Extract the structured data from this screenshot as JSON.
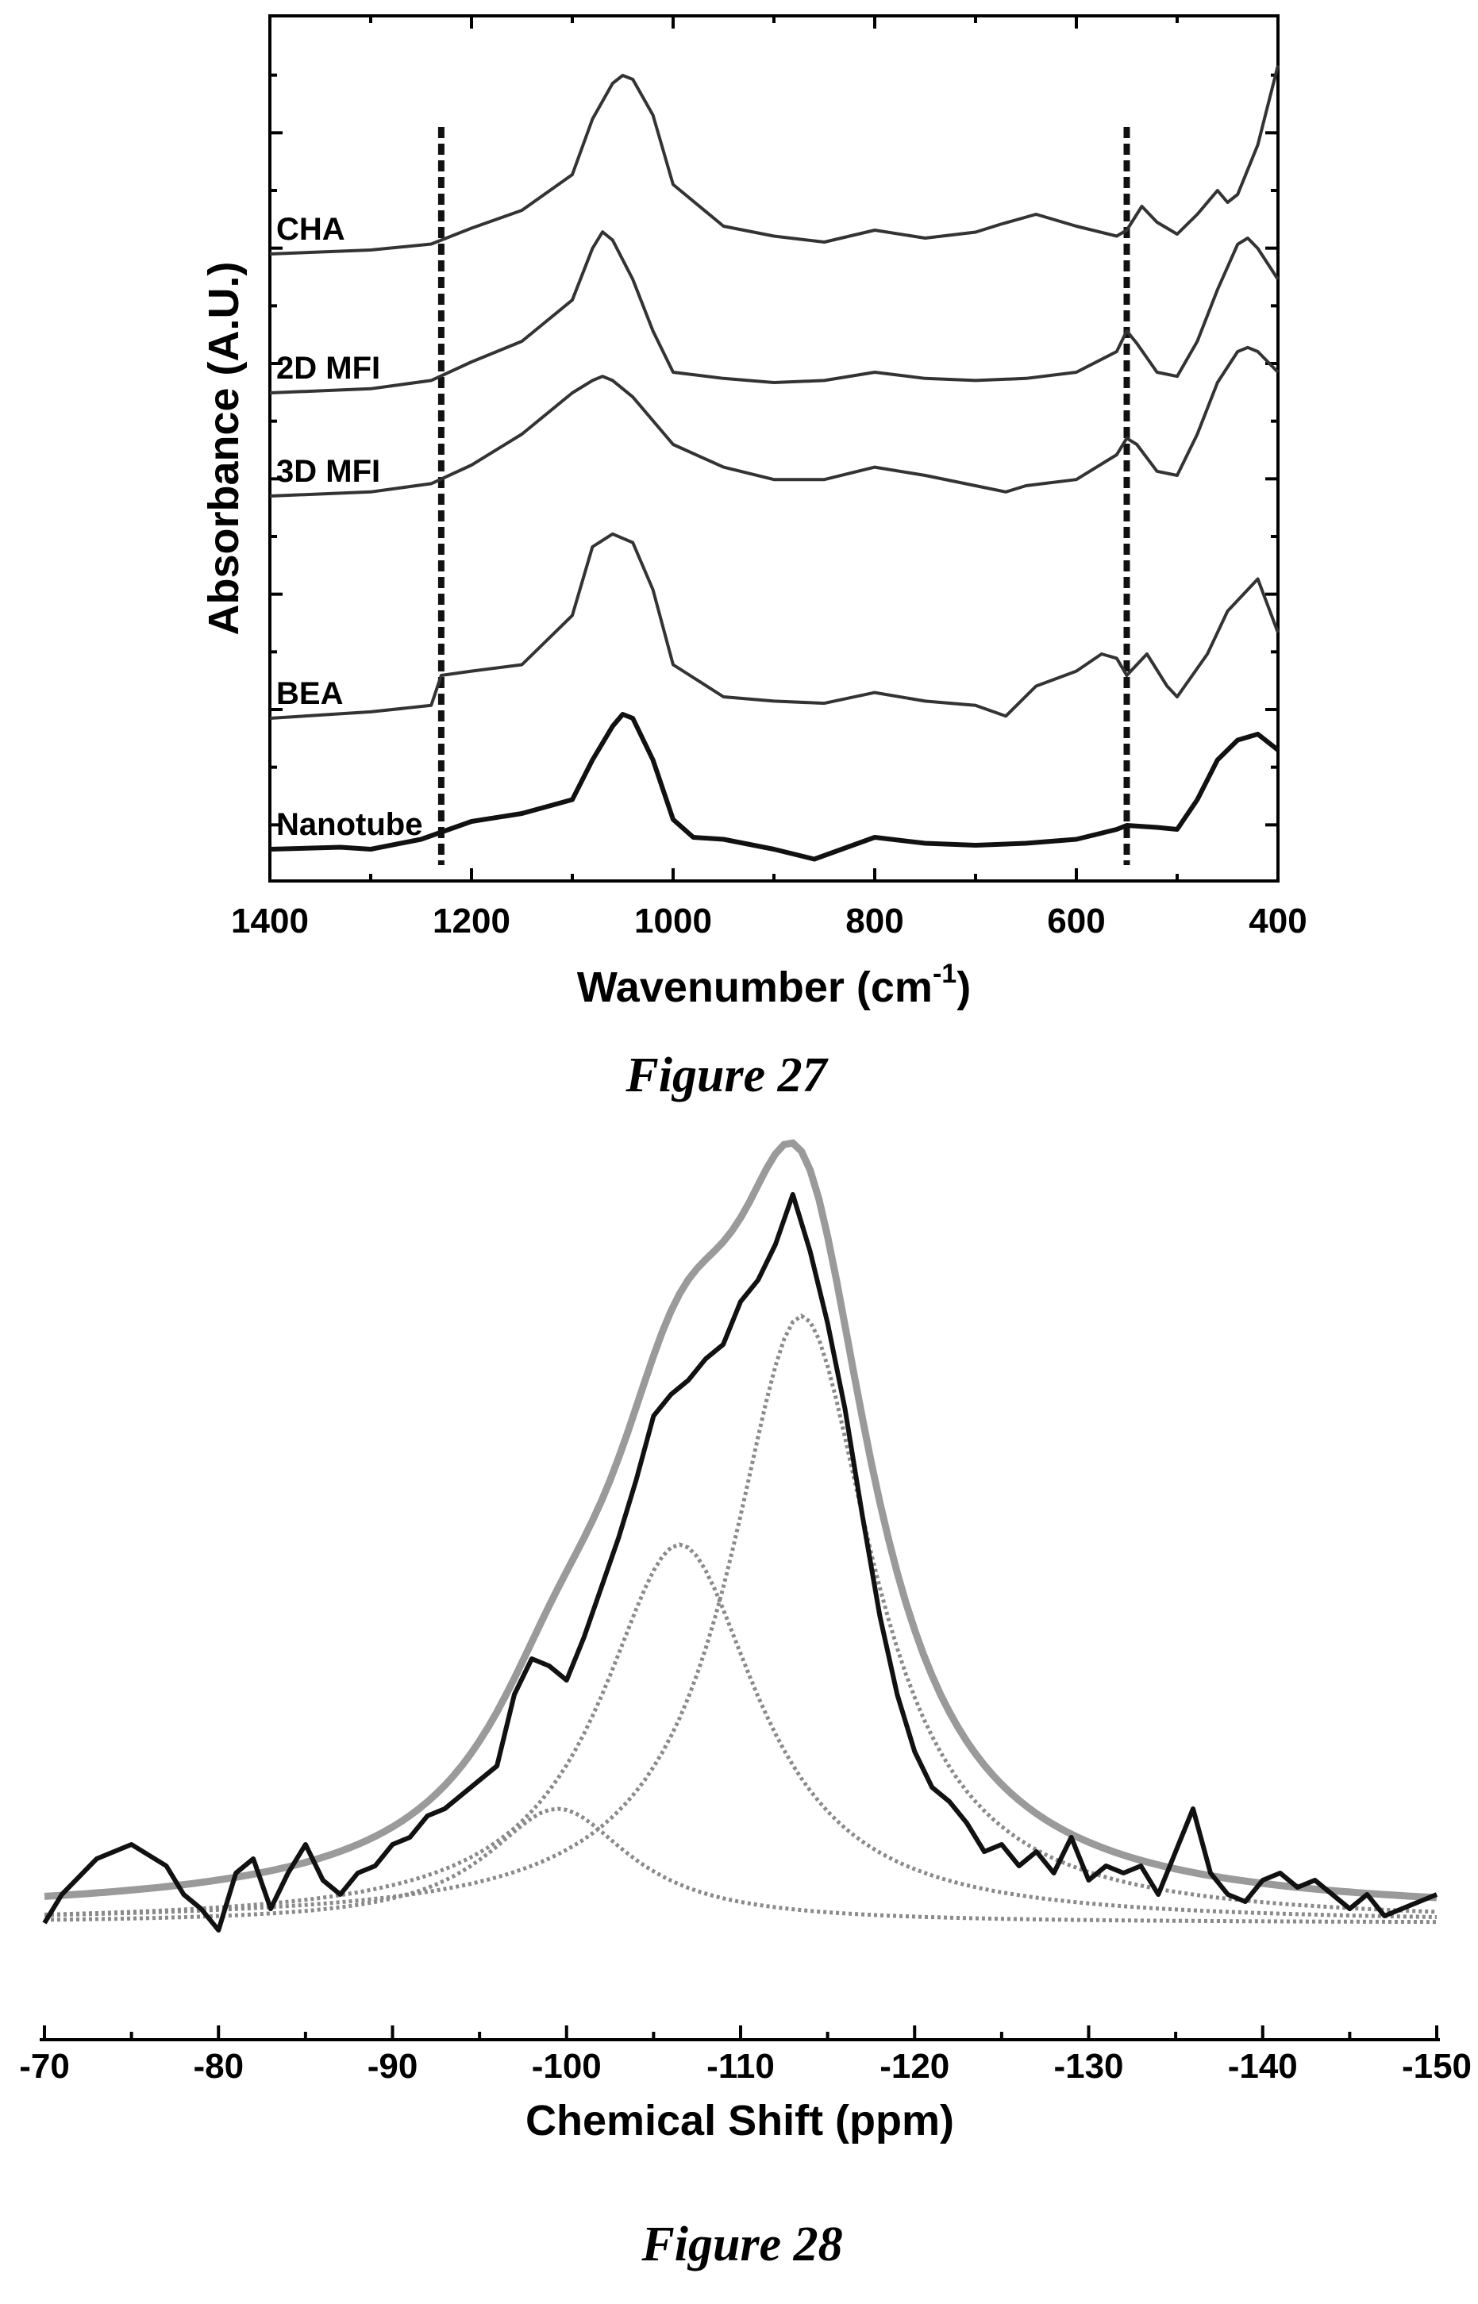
{
  "chart_data": [
    {
      "type": "line",
      "caption": "Figure 27",
      "xlabel": "Wavenumber (cm",
      "xlabel_sup": "-1",
      "xlabel_close": ")",
      "ylabel": "Absorbance (A.U.)",
      "xlim": [
        1400,
        400
      ],
      "x_reversed": true,
      "xticks": [
        "1400",
        "1200",
        "1000",
        "800",
        "600",
        "400"
      ],
      "reference_lines_x": [
        1230,
        550
      ],
      "grid": false,
      "series": [
        {
          "name": "CHA",
          "x": [
            1400,
            1300,
            1240,
            1200,
            1150,
            1100,
            1080,
            1060,
            1050,
            1040,
            1020,
            1000,
            950,
            900,
            850,
            800,
            750,
            700,
            675,
            640,
            600,
            560,
            550,
            535,
            520,
            500,
            480,
            460,
            450,
            440,
            420,
            400
          ],
          "y": [
            0.0,
            0.02,
            0.05,
            0.13,
            0.22,
            0.4,
            0.68,
            0.86,
            0.9,
            0.88,
            0.7,
            0.35,
            0.14,
            0.09,
            0.06,
            0.12,
            0.08,
            0.11,
            0.15,
            0.2,
            0.14,
            0.09,
            0.12,
            0.24,
            0.16,
            0.1,
            0.2,
            0.32,
            0.26,
            0.3,
            0.55,
            0.95
          ]
        },
        {
          "name": "2D MFI",
          "x": [
            1400,
            1300,
            1240,
            1200,
            1150,
            1100,
            1080,
            1070,
            1060,
            1040,
            1020,
            1000,
            950,
            900,
            850,
            800,
            750,
            700,
            650,
            600,
            560,
            550,
            540,
            520,
            500,
            480,
            460,
            440,
            430,
            420,
            400
          ],
          "y": [
            0.0,
            0.02,
            0.06,
            0.15,
            0.25,
            0.45,
            0.7,
            0.78,
            0.74,
            0.55,
            0.3,
            0.1,
            0.07,
            0.05,
            0.06,
            0.1,
            0.07,
            0.06,
            0.07,
            0.1,
            0.2,
            0.3,
            0.24,
            0.1,
            0.08,
            0.25,
            0.5,
            0.72,
            0.75,
            0.7,
            0.55
          ]
        },
        {
          "name": "3D MFI",
          "x": [
            1400,
            1300,
            1240,
            1200,
            1150,
            1100,
            1080,
            1070,
            1060,
            1040,
            1000,
            950,
            900,
            850,
            800,
            750,
            700,
            670,
            650,
            600,
            560,
            550,
            540,
            520,
            500,
            480,
            460,
            440,
            430,
            420,
            400
          ],
          "y": [
            0.0,
            0.02,
            0.06,
            0.15,
            0.3,
            0.5,
            0.56,
            0.58,
            0.56,
            0.48,
            0.25,
            0.14,
            0.08,
            0.08,
            0.14,
            0.1,
            0.05,
            0.02,
            0.05,
            0.08,
            0.2,
            0.28,
            0.25,
            0.12,
            0.1,
            0.3,
            0.55,
            0.7,
            0.72,
            0.7,
            0.6
          ]
        },
        {
          "name": "BEA",
          "x": [
            1400,
            1300,
            1240,
            1230,
            1200,
            1150,
            1100,
            1080,
            1060,
            1040,
            1020,
            1000,
            950,
            900,
            850,
            800,
            750,
            700,
            670,
            640,
            600,
            575,
            560,
            550,
            530,
            510,
            500,
            470,
            450,
            430,
            420,
            400
          ],
          "y": [
            0.0,
            0.03,
            0.06,
            0.2,
            0.22,
            0.25,
            0.48,
            0.8,
            0.86,
            0.82,
            0.6,
            0.25,
            0.1,
            0.08,
            0.07,
            0.12,
            0.08,
            0.06,
            0.01,
            0.15,
            0.22,
            0.3,
            0.28,
            0.2,
            0.3,
            0.15,
            0.1,
            0.3,
            0.5,
            0.6,
            0.65,
            0.4
          ]
        },
        {
          "name": "Nanotube",
          "x": [
            1400,
            1330,
            1300,
            1250,
            1200,
            1150,
            1100,
            1080,
            1060,
            1050,
            1040,
            1020,
            1000,
            980,
            950,
            900,
            860,
            800,
            750,
            700,
            650,
            600,
            560,
            550,
            520,
            500,
            480,
            460,
            440,
            420,
            400
          ],
          "y": [
            0.0,
            0.01,
            0.0,
            0.05,
            0.14,
            0.18,
            0.25,
            0.45,
            0.62,
            0.68,
            0.66,
            0.45,
            0.15,
            0.06,
            0.05,
            0.0,
            -0.05,
            0.06,
            0.03,
            0.02,
            0.03,
            0.05,
            0.1,
            0.12,
            0.11,
            0.1,
            0.25,
            0.45,
            0.55,
            0.58,
            0.5
          ]
        }
      ]
    },
    {
      "type": "line",
      "caption": "Figure 28",
      "xlabel": "Chemical Shift (ppm)",
      "ylabel": "",
      "xlim": [
        -70,
        -150
      ],
      "x_reversed": true,
      "xticks": [
        "-70",
        "-80",
        "-90",
        "-100",
        "-110",
        "-120",
        "-130",
        "-140",
        "-150"
      ],
      "grid": false,
      "series": [
        {
          "name": "",
          "role": "measured",
          "x": [
            -70,
            -71,
            -73,
            -75,
            -77,
            -78,
            -79,
            -80,
            -81,
            -82,
            -83,
            -84,
            -85,
            -86,
            -87,
            -88,
            -89,
            -90,
            -91,
            -92,
            -93,
            -94,
            -95,
            -96,
            -97,
            -98,
            -99,
            -100,
            -101,
            -102,
            -103,
            -104,
            -105,
            -106,
            -107,
            -108,
            -109,
            -110,
            -111,
            -112,
            -113,
            -114,
            -115,
            -116,
            -117,
            -118,
            -119,
            -120,
            -121,
            -122,
            -123,
            -124,
            -125,
            -126,
            -127,
            -128,
            -129,
            -130,
            -131,
            -132,
            -133,
            -134,
            -135,
            -136,
            -137,
            -138,
            -139,
            -140,
            -141,
            -142,
            -143,
            -144,
            -145,
            -146,
            -147,
            -148,
            -149,
            -150
          ],
          "y": [
            -0.02,
            0.02,
            0.07,
            0.09,
            0.06,
            0.02,
            0.0,
            -0.03,
            0.05,
            0.07,
            0.0,
            0.05,
            0.09,
            0.04,
            0.02,
            0.05,
            0.06,
            0.09,
            0.1,
            0.13,
            0.14,
            0.16,
            0.18,
            0.2,
            0.3,
            0.35,
            0.34,
            0.32,
            0.38,
            0.45,
            0.52,
            0.6,
            0.69,
            0.72,
            0.74,
            0.77,
            0.79,
            0.85,
            0.88,
            0.93,
            1.0,
            0.92,
            0.82,
            0.7,
            0.55,
            0.41,
            0.3,
            0.22,
            0.17,
            0.15,
            0.12,
            0.08,
            0.09,
            0.06,
            0.08,
            0.05,
            0.1,
            0.04,
            0.06,
            0.05,
            0.06,
            0.02,
            0.08,
            0.14,
            0.05,
            0.02,
            0.01,
            0.04,
            0.05,
            0.03,
            0.04,
            0.02,
            0.0,
            0.02,
            -0.01,
            0.0,
            0.01,
            0.02
          ]
        },
        {
          "name": "",
          "role": "fit component",
          "center": -99.5,
          "amplitude": 0.16,
          "width": 5.0
        },
        {
          "name": "",
          "role": "fit component",
          "center": -106.5,
          "amplitude": 0.53,
          "width": 5.5
        },
        {
          "name": "",
          "role": "fit component",
          "center": -113.5,
          "amplitude": 0.85,
          "width": 5.0
        },
        {
          "name": "",
          "role": "fit sum"
        }
      ]
    }
  ]
}
